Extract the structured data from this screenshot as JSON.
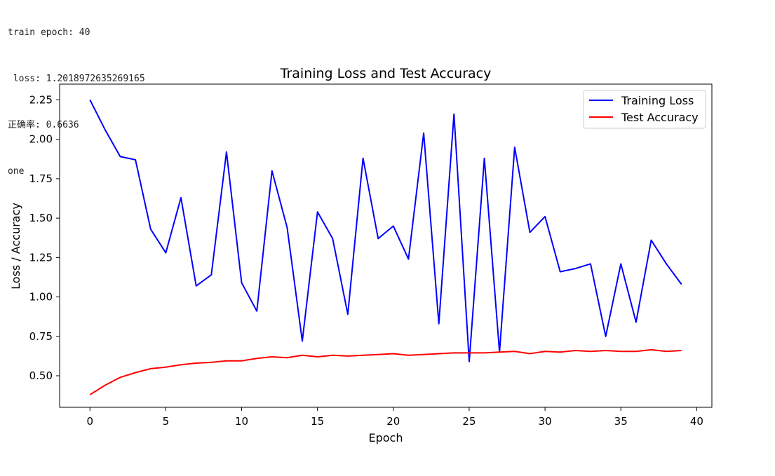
{
  "console": {
    "lines": [
      "train epoch: 40",
      " loss: 1.2018972635269165",
      "正确率: 0.6636",
      "one"
    ]
  },
  "chart_data": {
    "type": "line",
    "title": "Training Loss and Test Accuracy",
    "xlabel": "Epoch",
    "ylabel": "Loss / Accuracy",
    "xlim": [
      -2,
      41
    ],
    "ylim": [
      0.3,
      2.35
    ],
    "xticks": [
      0,
      5,
      10,
      15,
      20,
      25,
      30,
      35,
      40
    ],
    "yticks": [
      0.5,
      0.75,
      1.0,
      1.25,
      1.5,
      1.75,
      2.0,
      2.25
    ],
    "ytick_labels": [
      "0.50",
      "0.75",
      "1.00",
      "1.25",
      "1.50",
      "1.75",
      "2.00",
      "2.25"
    ],
    "grid": false,
    "legend_position": "top-right",
    "x": [
      0,
      1,
      2,
      3,
      4,
      5,
      6,
      7,
      8,
      9,
      10,
      11,
      12,
      13,
      14,
      15,
      16,
      17,
      18,
      19,
      20,
      21,
      22,
      23,
      24,
      25,
      26,
      27,
      28,
      29,
      30,
      31,
      32,
      33,
      34,
      35,
      36,
      37,
      38,
      39
    ],
    "series": [
      {
        "name": "Training Loss",
        "color": "#0000ff",
        "values": [
          2.25,
          2.06,
          1.89,
          1.87,
          1.43,
          1.28,
          1.63,
          1.07,
          1.14,
          1.92,
          1.09,
          0.91,
          1.8,
          1.44,
          0.72,
          1.54,
          1.37,
          0.89,
          1.88,
          1.37,
          1.45,
          1.24,
          2.04,
          0.83,
          2.16,
          0.59,
          1.88,
          0.65,
          1.95,
          1.41,
          1.51,
          1.16,
          1.18,
          1.21,
          0.75,
          1.21,
          0.84,
          1.36,
          1.21,
          1.08
        ]
      },
      {
        "name": "Test Accuracy",
        "color": "#ff0000",
        "values": [
          0.38,
          0.44,
          0.49,
          0.52,
          0.545,
          0.555,
          0.57,
          0.58,
          0.585,
          0.595,
          0.595,
          0.61,
          0.62,
          0.615,
          0.63,
          0.62,
          0.63,
          0.625,
          0.63,
          0.635,
          0.64,
          0.63,
          0.635,
          0.64,
          0.645,
          0.645,
          0.645,
          0.65,
          0.655,
          0.64,
          0.655,
          0.65,
          0.66,
          0.655,
          0.66,
          0.655,
          0.655,
          0.665,
          0.655,
          0.66
        ]
      }
    ]
  }
}
